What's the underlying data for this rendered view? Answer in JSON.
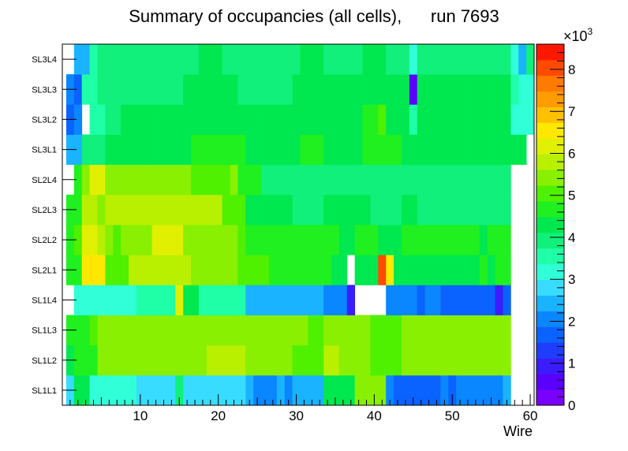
{
  "chart_data": {
    "type": "heatmap",
    "title": "Summary of occupancies (all cells),      run 7693",
    "xlabel": "Wire",
    "ylabel": "",
    "xlim": [
      0,
      60.5
    ],
    "x_ticks": [
      "10",
      "20",
      "30",
      "40",
      "50",
      "60"
    ],
    "x_tick_values": [
      10,
      20,
      30,
      40,
      50,
      60
    ],
    "rows": [
      "SL1L1",
      "SL1L2",
      "SL1L3",
      "SL1L4",
      "SL2L1",
      "SL2L2",
      "SL2L3",
      "SL2L4",
      "SL3L1",
      "SL3L2",
      "SL3L3",
      "SL3L4"
    ],
    "colorbar": {
      "min": 0,
      "max": 8.6,
      "exponent_label": "×10",
      "exponent_power": "3",
      "tick_labels": [
        "0",
        "1",
        "2",
        "3",
        "4",
        "5",
        "6",
        "7",
        "8"
      ],
      "tick_values": [
        0,
        1,
        2,
        3,
        4,
        5,
        6,
        7,
        8
      ],
      "palette": [
        "#7a00ff",
        "#5a00ff",
        "#3b1cff",
        "#1e3dff",
        "#0a62ff",
        "#0a86ff",
        "#1ab3ff",
        "#38dcff",
        "#30ffd8",
        "#1fffa8",
        "#10f07a",
        "#00e850",
        "#20f020",
        "#4ff000",
        "#88f000",
        "#b8f000",
        "#e0f000",
        "#ffe800",
        "#ffc000",
        "#ff9c00",
        "#ff7a00",
        "#ff4a00",
        "#ff1800"
      ]
    },
    "values": [
      [
        2.9,
        4.4,
        4.2,
        3.3,
        3.0,
        3.3,
        3.1,
        3.1,
        3.1,
        2.8,
        2.8,
        2.8,
        2.8,
        2.8,
        4.0,
        2.8,
        2.8,
        2.8,
        2.8,
        2.8,
        2.8,
        2.8,
        2.8,
        2.3,
        2.1,
        2.1,
        2.1,
        2.3,
        2.1,
        2.6,
        2.6,
        2.6,
        2.6,
        4.4,
        4.4,
        4.4,
        4.4,
        5.5,
        5.5,
        5.5,
        5.5,
        2.0,
        1.8,
        1.8,
        1.8,
        1.7,
        1.7,
        1.7,
        2.1,
        1.8,
        2.1,
        2.1,
        2.1,
        2.1,
        2.1,
        2.1,
        2.6,
        null,
        null,
        null
      ],
      [
        4.3,
        4.6,
        4.8,
        4.7,
        5.4,
        5.4,
        5.4,
        5.4,
        5.4,
        5.4,
        5.4,
        5.4,
        5.4,
        5.4,
        5.4,
        5.4,
        5.4,
        5.4,
        5.8,
        5.8,
        5.8,
        5.8,
        5.8,
        5.4,
        5.4,
        5.4,
        5.4,
        5.4,
        5.4,
        5.1,
        5.1,
        5.1,
        5.1,
        5.8,
        5.8,
        5.4,
        5.4,
        5.4,
        5.4,
        5.1,
        5.1,
        5.1,
        5.1,
        5.4,
        5.4,
        5.4,
        5.4,
        5.4,
        5.4,
        5.4,
        5.4,
        5.4,
        5.4,
        5.4,
        5.4,
        5.4,
        5.4,
        null,
        null,
        null
      ],
      [
        4.6,
        4.8,
        4.8,
        5.0,
        5.3,
        5.3,
        5.3,
        5.3,
        5.3,
        5.3,
        5.3,
        5.3,
        5.3,
        5.3,
        5.3,
        5.3,
        5.3,
        5.3,
        5.6,
        5.6,
        5.6,
        5.6,
        5.3,
        5.3,
        5.3,
        5.3,
        5.3,
        5.3,
        5.3,
        5.3,
        5.3,
        5.0,
        5.0,
        5.3,
        5.3,
        5.3,
        5.3,
        5.3,
        5.3,
        5.0,
        5.0,
        5.0,
        5.0,
        5.3,
        5.3,
        5.3,
        5.3,
        5.3,
        5.3,
        5.3,
        5.3,
        5.3,
        5.3,
        5.3,
        5.3,
        5.3,
        5.3,
        null,
        null,
        null
      ],
      [
        null,
        3.3,
        3.2,
        3.2,
        3.2,
        3.2,
        3.2,
        3.2,
        3.2,
        3.6,
        3.6,
        3.6,
        3.6,
        3.6,
        6.0,
        4.3,
        4.3,
        3.4,
        3.4,
        3.4,
        3.4,
        3.4,
        3.4,
        2.5,
        2.5,
        2.5,
        2.5,
        2.5,
        2.5,
        2.5,
        2.5,
        2.5,
        2.5,
        2.2,
        2.2,
        2.2,
        0.9,
        null,
        null,
        null,
        null,
        2.0,
        2.0,
        2.0,
        2.0,
        1.6,
        2.0,
        2.0,
        1.6,
        1.6,
        1.6,
        1.6,
        1.6,
        1.6,
        1.6,
        0.8,
        1.6,
        null,
        null,
        null
      ],
      [
        4.8,
        4.8,
        6.4,
        6.4,
        6.4,
        5.2,
        5.2,
        5.2,
        5.8,
        5.8,
        5.8,
        5.8,
        5.8,
        5.8,
        5.8,
        5.8,
        5.5,
        5.5,
        5.5,
        5.5,
        5.5,
        5.5,
        5.2,
        5.2,
        5.2,
        5.2,
        4.8,
        4.8,
        4.8,
        4.8,
        4.8,
        4.8,
        4.8,
        4.8,
        4.4,
        4.4,
        null,
        4.4,
        4.4,
        4.4,
        8.2,
        6.5,
        4.4,
        4.4,
        4.4,
        4.4,
        4.4,
        4.4,
        4.4,
        4.4,
        4.4,
        4.4,
        4.4,
        4.8,
        4.4,
        4.8,
        4.8,
        null,
        null,
        null
      ],
      [
        4.8,
        5.0,
        6.2,
        6.2,
        5.8,
        5.4,
        5.0,
        5.4,
        5.4,
        5.4,
        5.4,
        6.2,
        6.2,
        6.2,
        6.2,
        5.4,
        5.4,
        5.4,
        5.4,
        5.4,
        5.4,
        5.4,
        5.0,
        4.7,
        4.7,
        4.7,
        4.7,
        4.7,
        4.7,
        4.7,
        4.7,
        4.7,
        4.7,
        4.7,
        4.7,
        4.2,
        4.2,
        4.7,
        4.7,
        4.7,
        4.2,
        4.2,
        4.2,
        4.7,
        4.7,
        4.7,
        4.7,
        4.7,
        4.7,
        4.7,
        4.7,
        4.7,
        4.7,
        4.4,
        4.7,
        4.7,
        4.7,
        null,
        null,
        null
      ],
      [
        4.8,
        4.8,
        5.7,
        5.7,
        5.6,
        5.7,
        5.7,
        5.7,
        5.7,
        5.7,
        5.7,
        5.7,
        5.7,
        5.7,
        5.7,
        5.7,
        5.7,
        5.7,
        5.7,
        5.7,
        5.1,
        5.1,
        5.1,
        4.4,
        4.4,
        4.4,
        4.4,
        4.4,
        4.4,
        4.1,
        4.1,
        4.1,
        4.1,
        4.4,
        4.4,
        4.4,
        4.4,
        4.4,
        4.4,
        4.1,
        4.1,
        4.1,
        4.1,
        4.4,
        4.4,
        4.1,
        4.1,
        4.1,
        4.1,
        4.1,
        4.1,
        3.8,
        4.1,
        4.1,
        4.1,
        4.1,
        4.1,
        null,
        null,
        null
      ],
      [
        null,
        4.8,
        5.3,
        6.0,
        6.0,
        5.4,
        5.4,
        5.4,
        5.4,
        5.4,
        5.4,
        5.4,
        5.4,
        5.4,
        5.4,
        5.4,
        5.1,
        5.1,
        5.1,
        5.1,
        5.1,
        5.4,
        4.7,
        4.7,
        4.7,
        4.0,
        4.0,
        4.0,
        4.0,
        4.0,
        4.0,
        4.0,
        4.0,
        4.0,
        4.0,
        4.0,
        4.0,
        4.0,
        4.0,
        4.0,
        4.0,
        4.0,
        4.0,
        4.0,
        4.0,
        4.0,
        4.0,
        4.0,
        4.0,
        4.0,
        4.0,
        4.0,
        4.0,
        4.0,
        4.0,
        4.0,
        4.0,
        null,
        null,
        null
      ],
      [
        2.5,
        2.5,
        3.9,
        3.9,
        3.9,
        4.2,
        4.2,
        4.2,
        4.2,
        4.2,
        4.2,
        4.2,
        4.2,
        4.2,
        4.2,
        4.2,
        4.6,
        4.6,
        4.6,
        4.6,
        4.6,
        4.6,
        4.6,
        4.2,
        4.2,
        4.2,
        4.2,
        4.2,
        4.2,
        4.2,
        4.5,
        4.5,
        4.5,
        4.2,
        4.2,
        4.2,
        4.2,
        4.2,
        4.5,
        4.5,
        4.5,
        4.5,
        4.5,
        4.2,
        4.2,
        4.2,
        4.2,
        4.2,
        4.2,
        4.2,
        4.2,
        4.2,
        4.2,
        4.2,
        4.2,
        4.2,
        4.2,
        4.2,
        4.2,
        null
      ],
      [
        1.8,
        2.0,
        null,
        3.6,
        3.6,
        3.9,
        3.9,
        4.2,
        4.2,
        4.2,
        4.2,
        4.2,
        4.2,
        4.2,
        4.2,
        4.2,
        4.2,
        4.2,
        4.2,
        4.2,
        4.2,
        4.2,
        4.2,
        4.2,
        4.2,
        4.2,
        4.2,
        4.2,
        4.2,
        4.2,
        4.2,
        4.2,
        4.2,
        4.2,
        4.2,
        4.2,
        4.2,
        4.2,
        4.5,
        4.5,
        5.0,
        4.2,
        4.2,
        4.2,
        3.6,
        4.2,
        4.2,
        4.2,
        4.2,
        4.2,
        4.2,
        4.2,
        4.2,
        4.2,
        4.2,
        4.2,
        4.2,
        3.3,
        3.3,
        3.3
      ],
      [
        2.0,
        1.8,
        3.6,
        3.6,
        3.9,
        3.9,
        3.9,
        3.9,
        3.9,
        3.9,
        3.9,
        3.9,
        3.9,
        3.9,
        3.9,
        4.2,
        4.2,
        4.2,
        4.2,
        4.2,
        4.2,
        4.2,
        3.9,
        3.9,
        3.9,
        3.9,
        3.9,
        3.9,
        3.9,
        4.2,
        4.2,
        4.2,
        4.2,
        4.2,
        4.2,
        4.2,
        4.2,
        4.2,
        4.2,
        4.2,
        4.2,
        4.2,
        4.2,
        4.2,
        0.5,
        4.2,
        4.2,
        4.2,
        4.2,
        4.2,
        4.2,
        4.2,
        4.2,
        4.2,
        4.2,
        4.2,
        4.2,
        3.6,
        3.3,
        3.3
      ],
      [
        null,
        2.3,
        2.6,
        3.4,
        3.9,
        3.9,
        3.9,
        3.9,
        3.9,
        3.9,
        3.9,
        3.9,
        3.9,
        3.9,
        3.9,
        3.9,
        3.9,
        4.2,
        4.2,
        4.2,
        3.9,
        3.9,
        3.9,
        3.9,
        3.9,
        3.9,
        3.9,
        3.9,
        3.9,
        3.9,
        4.2,
        4.2,
        4.2,
        3.9,
        3.9,
        3.9,
        3.9,
        3.9,
        4.2,
        4.2,
        4.2,
        3.9,
        3.9,
        3.9,
        3.3,
        3.9,
        3.9,
        3.9,
        3.9,
        3.9,
        3.9,
        3.9,
        3.9,
        3.9,
        3.9,
        3.9,
        3.9,
        3.3,
        2.6,
        3.9
      ]
    ]
  }
}
